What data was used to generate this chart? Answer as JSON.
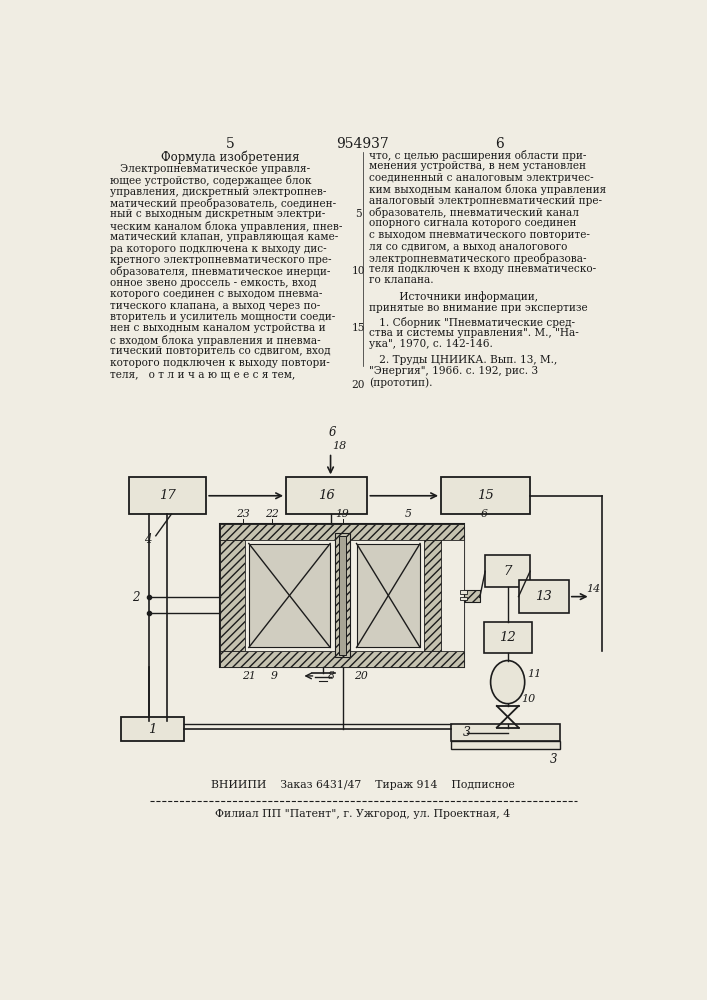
{
  "bg_color": "#f0ede3",
  "title_patent": "954937",
  "col_left_num": "5",
  "col_right_num": "6",
  "col_left_header": "Формула изобретения",
  "left_lines": [
    "   Электропневматическое управля-",
    "ющее устройство, содержащее блок",
    "управления, дискретный электропнев-",
    "матический преобразователь, соединен-",
    "ный с выходным дискретным электри-",
    "ческим каналом блока управления, пнев-",
    "матический клапан, управляющая каме-",
    "ра которого подключена к выходу дис-",
    "кретного электропневматического пре-",
    "образователя, пневматическое инерци-",
    "онное звено дроссель - емкость, вход",
    "которого соединен с выходом пневма-",
    "тического клапана, а выход через по-",
    "вторитель и усилитель мощности соеди-",
    "нен с выходным каналом устройства и",
    "с входом блока управления и пневма-",
    "тический повторитель со сдвигом, вход",
    "которого подключен к выходу повтори-",
    "теля,   о т л и ч а ю щ е е с я тем,"
  ],
  "right_lines": [
    "что, с целью расширения области при-",
    "менения устройства, в нем установлен",
    "соединенный с аналоговым электричес-",
    "ким выходным каналом блока управления",
    "аналоговый электропневматический пре-",
    "образователь, пневматический канал",
    "опорного сигнала которого соединен",
    "с выходом пневматического повторите-",
    "ля со сдвигом, а выход аналогового",
    "электропневматического преобразова-",
    "теля подключен к входу пневматическо-",
    "го клапана."
  ],
  "ref_header1": "         Источники информации,",
  "ref_header2": "принятые во внимание при экспертизе",
  "ref1_lines": [
    "   1. Сборник \"Пневматические сред-",
    "ства и системы управления\". М., \"На-",
    "ука\", 1970, с. 142-146."
  ],
  "ref2_lines": [
    "   2. Труды ЦНИИКА. Вып. 13, М.,",
    "\"Энергия\", 1966. с. 192, рис. 3",
    "(прототип)."
  ],
  "linenum_5_right": "5",
  "linenum_10_right": "10",
  "linenum_15_left": "15",
  "linenum_20_left": "20",
  "footer1": "ВНИИПИ    Заказ 6431/47    Тираж 914    Подписное",
  "footer2": "Филиал ПП \"Патент\", г. Ужгород, ул. Проектная, 4",
  "lc": "#1c1c1c",
  "hatch_fc": "#c5c2b0",
  "box_fc": "#e8e5d8",
  "chamber_fc": "#d0cdc0"
}
